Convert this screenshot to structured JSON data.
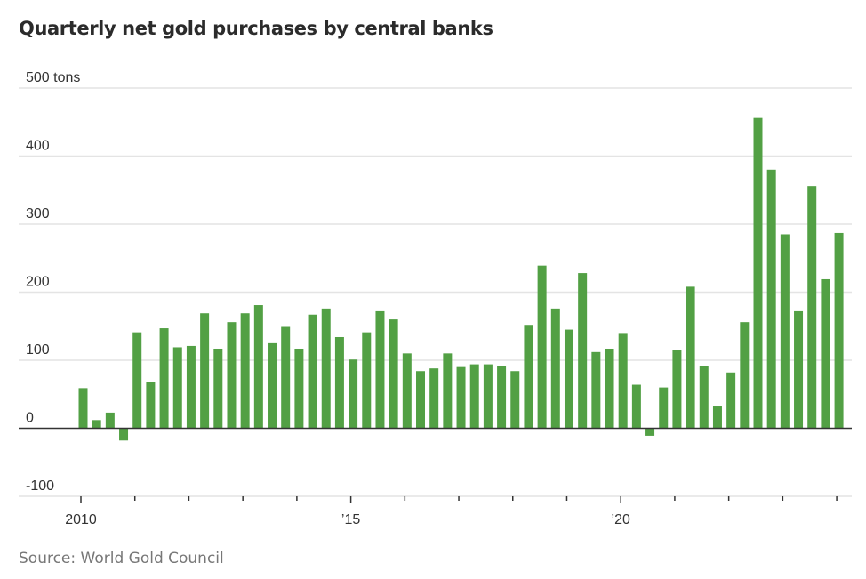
{
  "title": "Quarterly net gold purchases by central banks",
  "source": "Source: World Gold Council",
  "colors": {
    "bar": "#52a044",
    "grid": "#e4e4e4",
    "zero": "#333333",
    "text": "#333333"
  },
  "chart_data": {
    "type": "bar",
    "title": "Quarterly net gold purchases by central banks",
    "xlabel": "",
    "ylabel": "tons",
    "ylim": [
      -100,
      500
    ],
    "grid": true,
    "yticks": [
      {
        "value": 500,
        "label": "500 tons"
      },
      {
        "value": 400,
        "label": "400"
      },
      {
        "value": 300,
        "label": "300"
      },
      {
        "value": 200,
        "label": "200"
      },
      {
        "value": 100,
        "label": "100"
      },
      {
        "value": 0,
        "label": "0"
      },
      {
        "value": -100,
        "label": "-100"
      }
    ],
    "xticks": [
      {
        "year": 2010,
        "label": "2010"
      },
      {
        "year": 2015,
        "label": "’15"
      },
      {
        "year": 2020,
        "label": "’20"
      }
    ],
    "x_range_years": [
      2010,
      2024
    ],
    "categories": [
      "2010 Q1",
      "2010 Q2",
      "2010 Q3",
      "2010 Q4",
      "2011 Q1",
      "2011 Q2",
      "2011 Q3",
      "2011 Q4",
      "2012 Q1",
      "2012 Q2",
      "2012 Q3",
      "2012 Q4",
      "2013 Q1",
      "2013 Q2",
      "2013 Q3",
      "2013 Q4",
      "2014 Q1",
      "2014 Q2",
      "2014 Q3",
      "2014 Q4",
      "2015 Q1",
      "2015 Q2",
      "2015 Q3",
      "2015 Q4",
      "2016 Q1",
      "2016 Q2",
      "2016 Q3",
      "2016 Q4",
      "2017 Q1",
      "2017 Q2",
      "2017 Q3",
      "2017 Q4",
      "2018 Q1",
      "2018 Q2",
      "2018 Q3",
      "2018 Q4",
      "2019 Q1",
      "2019 Q2",
      "2019 Q3",
      "2019 Q4",
      "2020 Q1",
      "2020 Q2",
      "2020 Q3",
      "2020 Q4",
      "2021 Q1",
      "2021 Q2",
      "2021 Q3",
      "2021 Q4",
      "2022 Q1",
      "2022 Q2",
      "2022 Q3",
      "2022 Q4",
      "2023 Q1",
      "2023 Q2",
      "2023 Q3",
      "2023 Q4",
      "2024 Q1"
    ],
    "values": [
      59,
      12,
      23,
      -18,
      141,
      68,
      147,
      119,
      121,
      169,
      117,
      156,
      169,
      181,
      125,
      149,
      117,
      167,
      176,
      134,
      101,
      141,
      172,
      160,
      110,
      84,
      88,
      110,
      90,
      94,
      94,
      92,
      84,
      152,
      239,
      176,
      145,
      228,
      112,
      117,
      140,
      64,
      -11,
      60,
      115,
      208,
      91,
      32,
      82,
      156,
      456,
      380,
      285,
      172,
      356,
      219,
      287
    ]
  }
}
